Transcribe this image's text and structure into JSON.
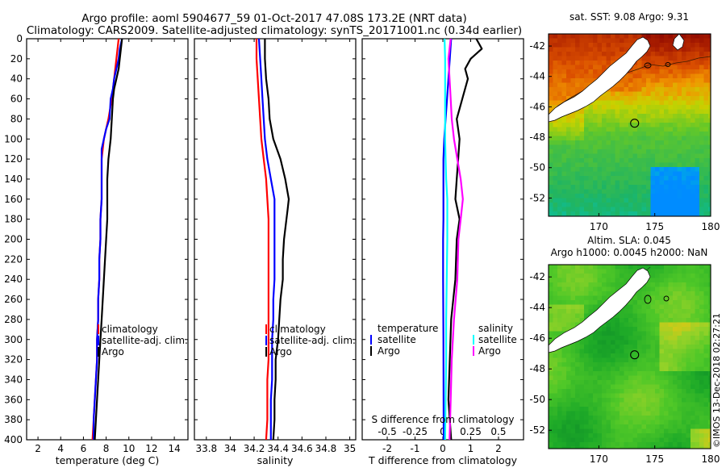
{
  "title": {
    "line1": "Argo profile: aoml 5904677_59 01-Oct-2017 47.08S 173.2E (NRT data)",
    "line2": "Climatology: CARS2009. Satellite-adjusted climatology: synTS_20171001.nc (0.34d earlier)"
  },
  "credit": "©IMOS 13-Dec-2018 02:27:21",
  "colors": {
    "black": "#000000",
    "red": "#ff0000",
    "blue": "#0000ff",
    "cyan": "#00ffff",
    "magenta": "#ff00ff"
  },
  "depth_ticks": [
    "0",
    "20",
    "40",
    "60",
    "80",
    "100",
    "120",
    "140",
    "160",
    "180",
    "200",
    "220",
    "240",
    "260",
    "280",
    "300",
    "320",
    "340",
    "360",
    "380",
    "400"
  ],
  "chart_data": [
    {
      "type": "line",
      "name": "temperature",
      "xlabel": "temperature (deg C)",
      "ylabel": "",
      "xlim": [
        1,
        15.2
      ],
      "ylim": [
        0,
        400
      ],
      "y_inverted": true,
      "xticks": [
        2,
        4,
        6,
        8,
        10,
        12,
        14
      ],
      "xtick_labels": [
        "2",
        "4",
        "6",
        "8",
        "10",
        "12",
        "14"
      ],
      "legend": [
        "climatology",
        "satellite-adj. clim.",
        "Argo"
      ],
      "series": [
        {
          "name": "climatology",
          "color": "#ff0000",
          "depth": [
            0,
            20,
            40,
            60,
            80,
            90,
            100,
            110,
            120,
            140,
            160,
            180,
            200,
            220,
            240,
            260,
            280,
            300,
            320,
            340,
            360,
            380,
            400
          ],
          "values": [
            9.1,
            8.9,
            8.7,
            8.5,
            8.2,
            8.0,
            7.8,
            7.7,
            7.6,
            7.6,
            7.6,
            7.5,
            7.5,
            7.4,
            7.4,
            7.3,
            7.3,
            7.2,
            7.2,
            7.1,
            7.0,
            6.9,
            6.8
          ]
        },
        {
          "name": "satellite-adj. clim.",
          "color": "#0000ff",
          "depth": [
            0,
            10,
            20,
            30,
            40,
            50,
            60,
            80,
            90,
            100,
            110,
            120,
            140,
            160,
            180,
            200,
            220,
            240,
            260,
            280,
            300,
            320,
            340,
            360,
            380,
            400
          ],
          "values": [
            9.4,
            9.2,
            9.1,
            8.9,
            8.7,
            8.6,
            8.4,
            8.3,
            8.0,
            7.8,
            7.6,
            7.6,
            7.6,
            7.6,
            7.5,
            7.5,
            7.4,
            7.4,
            7.3,
            7.3,
            7.2,
            7.2,
            7.1,
            7.0,
            6.9,
            6.9
          ]
        },
        {
          "name": "Argo",
          "color": "#000000",
          "depth": [
            0,
            10,
            20,
            30,
            40,
            50,
            60,
            80,
            100,
            110,
            120,
            140,
            160,
            180,
            200,
            220,
            240,
            260,
            280,
            300,
            320,
            340,
            360,
            380,
            400
          ],
          "values": [
            9.4,
            9.3,
            9.2,
            9.1,
            8.9,
            8.7,
            8.6,
            8.5,
            8.4,
            8.3,
            8.2,
            8.1,
            8.1,
            8.1,
            8.0,
            7.9,
            7.8,
            7.7,
            7.6,
            7.5,
            7.4,
            7.3,
            7.2,
            7.1,
            7.0
          ]
        }
      ]
    },
    {
      "type": "line",
      "name": "salinity",
      "xlabel": "salinity",
      "ylabel": "",
      "xlim": [
        33.7,
        35.05
      ],
      "ylim": [
        0,
        400
      ],
      "y_inverted": true,
      "xticks": [
        33.8,
        34,
        34.2,
        34.4,
        34.6,
        34.8,
        35
      ],
      "xtick_labels": [
        "33.8",
        "34",
        "34.2",
        "34.4",
        "34.6",
        "34.8",
        "35"
      ],
      "legend": [
        "climatology",
        "satellite-adj. clim.",
        "Argo"
      ],
      "series": [
        {
          "name": "climatology",
          "color": "#ff0000",
          "depth": [
            0,
            20,
            40,
            60,
            80,
            100,
            120,
            140,
            160,
            180,
            200,
            220,
            240,
            260,
            280,
            300,
            320,
            340,
            360,
            380,
            400
          ],
          "values": [
            34.22,
            34.22,
            34.23,
            34.24,
            34.25,
            34.26,
            34.28,
            34.3,
            34.31,
            34.32,
            34.32,
            34.32,
            34.32,
            34.32,
            34.32,
            34.32,
            34.32,
            34.31,
            34.31,
            34.31,
            34.3
          ]
        },
        {
          "name": "satellite-adj. clim.",
          "color": "#0000ff",
          "depth": [
            0,
            20,
            40,
            60,
            80,
            100,
            120,
            140,
            160,
            180,
            200,
            220,
            240,
            260,
            280,
            300,
            320,
            340,
            360,
            380,
            400
          ],
          "values": [
            34.24,
            34.25,
            34.26,
            34.27,
            34.28,
            34.29,
            34.31,
            34.34,
            34.37,
            34.37,
            34.37,
            34.37,
            34.37,
            34.36,
            34.36,
            34.35,
            34.35,
            34.35,
            34.34,
            34.34,
            34.34
          ]
        },
        {
          "name": "Argo",
          "color": "#000000",
          "depth": [
            0,
            20,
            40,
            60,
            80,
            100,
            120,
            140,
            160,
            170,
            180,
            200,
            220,
            240,
            260,
            280,
            300,
            320,
            340,
            360,
            380,
            400
          ],
          "values": [
            34.29,
            34.29,
            34.3,
            34.32,
            34.33,
            34.36,
            34.42,
            34.46,
            34.49,
            34.48,
            34.47,
            34.45,
            34.44,
            34.44,
            34.42,
            34.41,
            34.4,
            34.38,
            34.38,
            34.37,
            34.37,
            34.36
          ]
        }
      ]
    },
    {
      "type": "line",
      "name": "difference from climatology",
      "xlabel": "T difference from climatology",
      "xlabel_top": "S difference from climatology",
      "ylabel": "",
      "xlim": [
        -2.9,
        2.9
      ],
      "ylim": [
        0,
        400
      ],
      "y_inverted": true,
      "xticks": [
        -2,
        -1,
        0,
        1,
        2
      ],
      "xtick_labels": [
        "-2",
        "-1",
        "0",
        "1",
        "2"
      ],
      "sticks_scale": 4,
      "s_ticks": [
        -0.5,
        -0.25,
        0,
        0.25,
        0.5
      ],
      "s_tick_labels": [
        "-0.5",
        "-0.25",
        "0",
        "0.25",
        "0.5"
      ],
      "legend_temperature": {
        "title": "temperature",
        "items": [
          "satellite",
          "Argo"
        ]
      },
      "legend_salinity": {
        "title": "salinity",
        "items": [
          "satellite",
          "Argo"
        ]
      },
      "series": [
        {
          "name": "temperature satellite",
          "color": "#0000ff",
          "depth": [
            0,
            20,
            40,
            60,
            80,
            100,
            120,
            140,
            160,
            180,
            200,
            240,
            300,
            400
          ],
          "values": [
            0.3,
            0.25,
            0.2,
            0.15,
            0.1,
            0.05,
            0.02,
            0.02,
            0.02,
            0.02,
            0.01,
            0.01,
            0.02,
            0.03
          ]
        },
        {
          "name": "temperature Argo",
          "color": "#000000",
          "depth": [
            0,
            10,
            20,
            30,
            40,
            60,
            80,
            100,
            120,
            140,
            160,
            180,
            200,
            240,
            280,
            320,
            360,
            400
          ],
          "values": [
            1.2,
            1.4,
            1.0,
            0.8,
            0.9,
            0.7,
            0.5,
            0.6,
            0.55,
            0.5,
            0.45,
            0.6,
            0.5,
            0.45,
            0.3,
            0.25,
            0.2,
            0.3
          ]
        },
        {
          "name": "salinity satellite",
          "color": "#00ffff",
          "depth": [
            0,
            20,
            40,
            60,
            80,
            100,
            120,
            140,
            160,
            180,
            200,
            240,
            280,
            320,
            360,
            400
          ],
          "values": [
            0.015,
            0.02,
            0.02,
            0.02,
            0.02,
            0.02,
            0.025,
            0.03,
            0.04,
            0.04,
            0.04,
            0.035,
            0.03,
            0.03,
            0.025,
            0.02
          ]
        },
        {
          "name": "salinity Argo",
          "color": "#ff00ff",
          "depth": [
            0,
            20,
            40,
            60,
            80,
            100,
            120,
            140,
            160,
            180,
            200,
            240,
            280,
            320,
            360,
            400
          ],
          "values": [
            0.07,
            0.05,
            0.06,
            0.07,
            0.08,
            0.1,
            0.13,
            0.16,
            0.18,
            0.16,
            0.14,
            0.13,
            0.1,
            0.08,
            0.07,
            0.06
          ]
        }
      ]
    },
    {
      "type": "heatmap",
      "name": "SST map",
      "title": "sat. SST: 9.08 Argo: 9.31",
      "xlim": [
        165.5,
        180
      ],
      "ylim": [
        -53.2,
        -41.2
      ],
      "xticks": [
        170,
        175,
        180
      ],
      "xtick_labels": [
        "170",
        "175",
        "180"
      ],
      "yticks": [
        -42,
        -44,
        -46,
        -48,
        -50,
        -52
      ],
      "ytick_labels": [
        "-42",
        "-44",
        "-46",
        "-48",
        "-50",
        "-52"
      ],
      "float_position": [
        173.2,
        -47.08
      ]
    },
    {
      "type": "heatmap",
      "name": "SLA map",
      "title": "Altim. SLA: 0.045",
      "subtitle": "Argo h1000: 0.0045 h2000: NaN",
      "xlim": [
        165.5,
        180
      ],
      "ylim": [
        -53.2,
        -41.2
      ],
      "xticks": [
        170,
        175,
        180
      ],
      "xtick_labels": [
        "170",
        "175",
        "180"
      ],
      "yticks": [
        -42,
        -44,
        -46,
        -48,
        -50,
        -52
      ],
      "ytick_labels": [
        "-42",
        "-44",
        "-46",
        "-48",
        "-50",
        "-52"
      ],
      "float_position": [
        173.2,
        -47.08
      ]
    }
  ]
}
